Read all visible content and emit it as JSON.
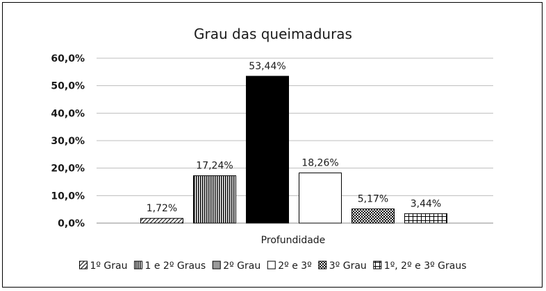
{
  "chart_data": {
    "type": "bar",
    "title": "Grau das queimaduras",
    "xlabel": "Profundidade",
    "ylabel": "",
    "ylim": [
      0,
      60
    ],
    "yticks": [
      "0,0%",
      "10,0%",
      "20,0%",
      "30,0%",
      "40,0%",
      "50,0%",
      "60,0%"
    ],
    "grid": true,
    "legend_position": "bottom",
    "series": [
      {
        "name": "1º Grau",
        "value": 1.72,
        "label": "1,72%",
        "pattern": "diag",
        "fill": "#ffffff"
      },
      {
        "name": "1 e 2º Graus",
        "value": 17.24,
        "label": "17,24%",
        "pattern": "vlines",
        "fill": "#ffffff"
      },
      {
        "name": "2º Grau",
        "value": 53.44,
        "label": "53,44%",
        "pattern": "solid",
        "fill": "#000000",
        "legend_fill": "#9a9a9a"
      },
      {
        "name": "2º e 3º",
        "value": 18.26,
        "label": "18,26%",
        "pattern": "none",
        "fill": "#ffffff"
      },
      {
        "name": "3º Grau",
        "value": 5.17,
        "label": "5,17%",
        "pattern": "checker",
        "fill": "#ffffff"
      },
      {
        "name": "1º, 2º e 3º Graus",
        "value": 3.44,
        "label": "3,44%",
        "pattern": "grid",
        "fill": "#ffffff"
      }
    ]
  }
}
